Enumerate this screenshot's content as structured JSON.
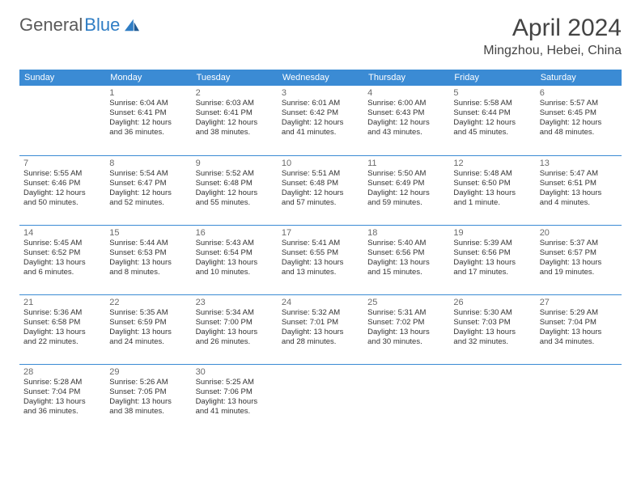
{
  "logo": {
    "part1": "General",
    "part2": "Blue"
  },
  "title": "April 2024",
  "location": "Mingzhou, Hebei, China",
  "colors": {
    "header_bg": "#3b8bd4",
    "header_text": "#ffffff",
    "row_divider": "#3b8bd4",
    "text": "#333333",
    "daynum": "#6b6b6b",
    "logo_gray": "#5a5a5a",
    "logo_blue": "#2f7dc4",
    "background": "#ffffff"
  },
  "fonts": {
    "family": "Arial, Helvetica, sans-serif",
    "month_title_pt": 30,
    "location_pt": 16,
    "header_cell_pt": 11,
    "daynum_pt": 11,
    "entry_pt": 9.5
  },
  "weekdays": [
    "Sunday",
    "Monday",
    "Tuesday",
    "Wednesday",
    "Thursday",
    "Friday",
    "Saturday"
  ],
  "weeks": [
    [
      {
        "empty": true
      },
      {
        "day": "1",
        "sunrise": "Sunrise: 6:04 AM",
        "sunset": "Sunset: 6:41 PM",
        "daylight1": "Daylight: 12 hours",
        "daylight2": "and 36 minutes."
      },
      {
        "day": "2",
        "sunrise": "Sunrise: 6:03 AM",
        "sunset": "Sunset: 6:41 PM",
        "daylight1": "Daylight: 12 hours",
        "daylight2": "and 38 minutes."
      },
      {
        "day": "3",
        "sunrise": "Sunrise: 6:01 AM",
        "sunset": "Sunset: 6:42 PM",
        "daylight1": "Daylight: 12 hours",
        "daylight2": "and 41 minutes."
      },
      {
        "day": "4",
        "sunrise": "Sunrise: 6:00 AM",
        "sunset": "Sunset: 6:43 PM",
        "daylight1": "Daylight: 12 hours",
        "daylight2": "and 43 minutes."
      },
      {
        "day": "5",
        "sunrise": "Sunrise: 5:58 AM",
        "sunset": "Sunset: 6:44 PM",
        "daylight1": "Daylight: 12 hours",
        "daylight2": "and 45 minutes."
      },
      {
        "day": "6",
        "sunrise": "Sunrise: 5:57 AM",
        "sunset": "Sunset: 6:45 PM",
        "daylight1": "Daylight: 12 hours",
        "daylight2": "and 48 minutes."
      }
    ],
    [
      {
        "day": "7",
        "sunrise": "Sunrise: 5:55 AM",
        "sunset": "Sunset: 6:46 PM",
        "daylight1": "Daylight: 12 hours",
        "daylight2": "and 50 minutes."
      },
      {
        "day": "8",
        "sunrise": "Sunrise: 5:54 AM",
        "sunset": "Sunset: 6:47 PM",
        "daylight1": "Daylight: 12 hours",
        "daylight2": "and 52 minutes."
      },
      {
        "day": "9",
        "sunrise": "Sunrise: 5:52 AM",
        "sunset": "Sunset: 6:48 PM",
        "daylight1": "Daylight: 12 hours",
        "daylight2": "and 55 minutes."
      },
      {
        "day": "10",
        "sunrise": "Sunrise: 5:51 AM",
        "sunset": "Sunset: 6:48 PM",
        "daylight1": "Daylight: 12 hours",
        "daylight2": "and 57 minutes."
      },
      {
        "day": "11",
        "sunrise": "Sunrise: 5:50 AM",
        "sunset": "Sunset: 6:49 PM",
        "daylight1": "Daylight: 12 hours",
        "daylight2": "and 59 minutes."
      },
      {
        "day": "12",
        "sunrise": "Sunrise: 5:48 AM",
        "sunset": "Sunset: 6:50 PM",
        "daylight1": "Daylight: 13 hours",
        "daylight2": "and 1 minute."
      },
      {
        "day": "13",
        "sunrise": "Sunrise: 5:47 AM",
        "sunset": "Sunset: 6:51 PM",
        "daylight1": "Daylight: 13 hours",
        "daylight2": "and 4 minutes."
      }
    ],
    [
      {
        "day": "14",
        "sunrise": "Sunrise: 5:45 AM",
        "sunset": "Sunset: 6:52 PM",
        "daylight1": "Daylight: 13 hours",
        "daylight2": "and 6 minutes."
      },
      {
        "day": "15",
        "sunrise": "Sunrise: 5:44 AM",
        "sunset": "Sunset: 6:53 PM",
        "daylight1": "Daylight: 13 hours",
        "daylight2": "and 8 minutes."
      },
      {
        "day": "16",
        "sunrise": "Sunrise: 5:43 AM",
        "sunset": "Sunset: 6:54 PM",
        "daylight1": "Daylight: 13 hours",
        "daylight2": "and 10 minutes."
      },
      {
        "day": "17",
        "sunrise": "Sunrise: 5:41 AM",
        "sunset": "Sunset: 6:55 PM",
        "daylight1": "Daylight: 13 hours",
        "daylight2": "and 13 minutes."
      },
      {
        "day": "18",
        "sunrise": "Sunrise: 5:40 AM",
        "sunset": "Sunset: 6:56 PM",
        "daylight1": "Daylight: 13 hours",
        "daylight2": "and 15 minutes."
      },
      {
        "day": "19",
        "sunrise": "Sunrise: 5:39 AM",
        "sunset": "Sunset: 6:56 PM",
        "daylight1": "Daylight: 13 hours",
        "daylight2": "and 17 minutes."
      },
      {
        "day": "20",
        "sunrise": "Sunrise: 5:37 AM",
        "sunset": "Sunset: 6:57 PM",
        "daylight1": "Daylight: 13 hours",
        "daylight2": "and 19 minutes."
      }
    ],
    [
      {
        "day": "21",
        "sunrise": "Sunrise: 5:36 AM",
        "sunset": "Sunset: 6:58 PM",
        "daylight1": "Daylight: 13 hours",
        "daylight2": "and 22 minutes."
      },
      {
        "day": "22",
        "sunrise": "Sunrise: 5:35 AM",
        "sunset": "Sunset: 6:59 PM",
        "daylight1": "Daylight: 13 hours",
        "daylight2": "and 24 minutes."
      },
      {
        "day": "23",
        "sunrise": "Sunrise: 5:34 AM",
        "sunset": "Sunset: 7:00 PM",
        "daylight1": "Daylight: 13 hours",
        "daylight2": "and 26 minutes."
      },
      {
        "day": "24",
        "sunrise": "Sunrise: 5:32 AM",
        "sunset": "Sunset: 7:01 PM",
        "daylight1": "Daylight: 13 hours",
        "daylight2": "and 28 minutes."
      },
      {
        "day": "25",
        "sunrise": "Sunrise: 5:31 AM",
        "sunset": "Sunset: 7:02 PM",
        "daylight1": "Daylight: 13 hours",
        "daylight2": "and 30 minutes."
      },
      {
        "day": "26",
        "sunrise": "Sunrise: 5:30 AM",
        "sunset": "Sunset: 7:03 PM",
        "daylight1": "Daylight: 13 hours",
        "daylight2": "and 32 minutes."
      },
      {
        "day": "27",
        "sunrise": "Sunrise: 5:29 AM",
        "sunset": "Sunset: 7:04 PM",
        "daylight1": "Daylight: 13 hours",
        "daylight2": "and 34 minutes."
      }
    ],
    [
      {
        "day": "28",
        "sunrise": "Sunrise: 5:28 AM",
        "sunset": "Sunset: 7:04 PM",
        "daylight1": "Daylight: 13 hours",
        "daylight2": "and 36 minutes."
      },
      {
        "day": "29",
        "sunrise": "Sunrise: 5:26 AM",
        "sunset": "Sunset: 7:05 PM",
        "daylight1": "Daylight: 13 hours",
        "daylight2": "and 38 minutes."
      },
      {
        "day": "30",
        "sunrise": "Sunrise: 5:25 AM",
        "sunset": "Sunset: 7:06 PM",
        "daylight1": "Daylight: 13 hours",
        "daylight2": "and 41 minutes."
      },
      {
        "empty": true
      },
      {
        "empty": true
      },
      {
        "empty": true
      },
      {
        "empty": true
      }
    ]
  ]
}
